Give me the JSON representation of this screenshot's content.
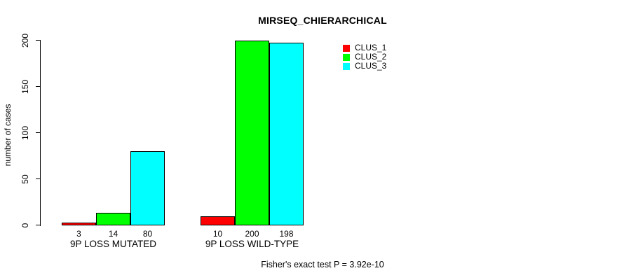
{
  "title": "MIRSEQ_CHIERARCHICAL",
  "footer_note": "Fisher's exact test P = 3.92e-10",
  "chart_data": {
    "type": "bar",
    "title": "MIRSEQ_CHIERARCHICAL",
    "xlabel": "",
    "ylabel": "number of cases",
    "ylim": [
      0,
      200
    ],
    "yticks": [
      0,
      50,
      100,
      150,
      200
    ],
    "grid": false,
    "legend_position": "top-right-inside",
    "categories": [
      "9P LOSS MUTATED",
      "9P LOSS WILD-TYPE"
    ],
    "series": [
      {
        "name": "CLUS_1",
        "color": "#ff0000",
        "values": [
          3,
          10
        ]
      },
      {
        "name": "CLUS_2",
        "color": "#00ff00",
        "values": [
          14,
          200
        ]
      },
      {
        "name": "CLUS_3",
        "color": "#00ffff",
        "values": [
          80,
          198
        ]
      }
    ],
    "groups": [
      {
        "label": "9P LOSS MUTATED",
        "values": [
          3,
          14,
          80
        ]
      },
      {
        "label": "9P LOSS WILD-TYPE",
        "values": [
          10,
          200,
          198
        ]
      }
    ],
    "bar_value_labels_shown": true,
    "annotation": "Fisher's exact test P = 3.92e-10"
  }
}
